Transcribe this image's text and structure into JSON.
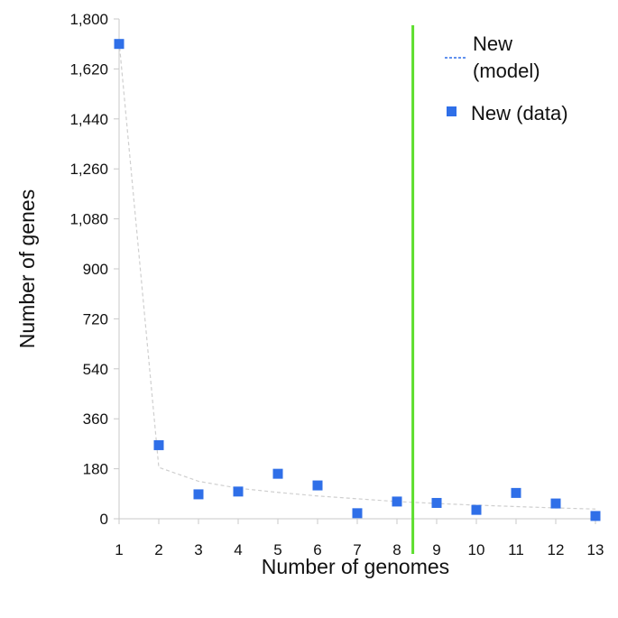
{
  "chart_data": {
    "type": "scatter",
    "xlabel": "Number of genomes",
    "ylabel": "Number of genes",
    "x_ticks": [
      "1",
      "2",
      "3",
      "4",
      "5",
      "6",
      "7",
      "8",
      "9",
      "10",
      "11",
      "12",
      "13"
    ],
    "y_ticks": [
      "0",
      "180",
      "360",
      "540",
      "720",
      "900",
      "1,080",
      "1,260",
      "1,440",
      "1,620",
      "1,800"
    ],
    "xlim": [
      1,
      13
    ],
    "ylim": [
      0,
      1800
    ],
    "grid": false,
    "legend_position": "top-right",
    "series": [
      {
        "name": "New (model)",
        "kind": "line",
        "style": "dashed",
        "color": "#cfcfcf",
        "legend_color": "#2f6fe8",
        "x": [
          1,
          2,
          3,
          4,
          5,
          6,
          7,
          8,
          9,
          10,
          11,
          12,
          13
        ],
        "y": [
          1720,
          185,
          135,
          110,
          95,
          82,
          72,
          62,
          55,
          49,
          44,
          39,
          35
        ]
      },
      {
        "name": "New (data)",
        "kind": "scatter",
        "marker": "square",
        "color": "#2f6fe8",
        "x": [
          1,
          2,
          3,
          4,
          5,
          6,
          7,
          8,
          9,
          10,
          11,
          12,
          13
        ],
        "y": [
          1710,
          265,
          88,
          98,
          162,
          120,
          20,
          62,
          57,
          32,
          93,
          55,
          10
        ]
      }
    ],
    "vertical_line": {
      "x": 8.4,
      "color": "#5dde2e"
    }
  },
  "legend": {
    "model_label_line1": "New",
    "model_label_line2": "(model)",
    "data_label": "New (data)"
  }
}
